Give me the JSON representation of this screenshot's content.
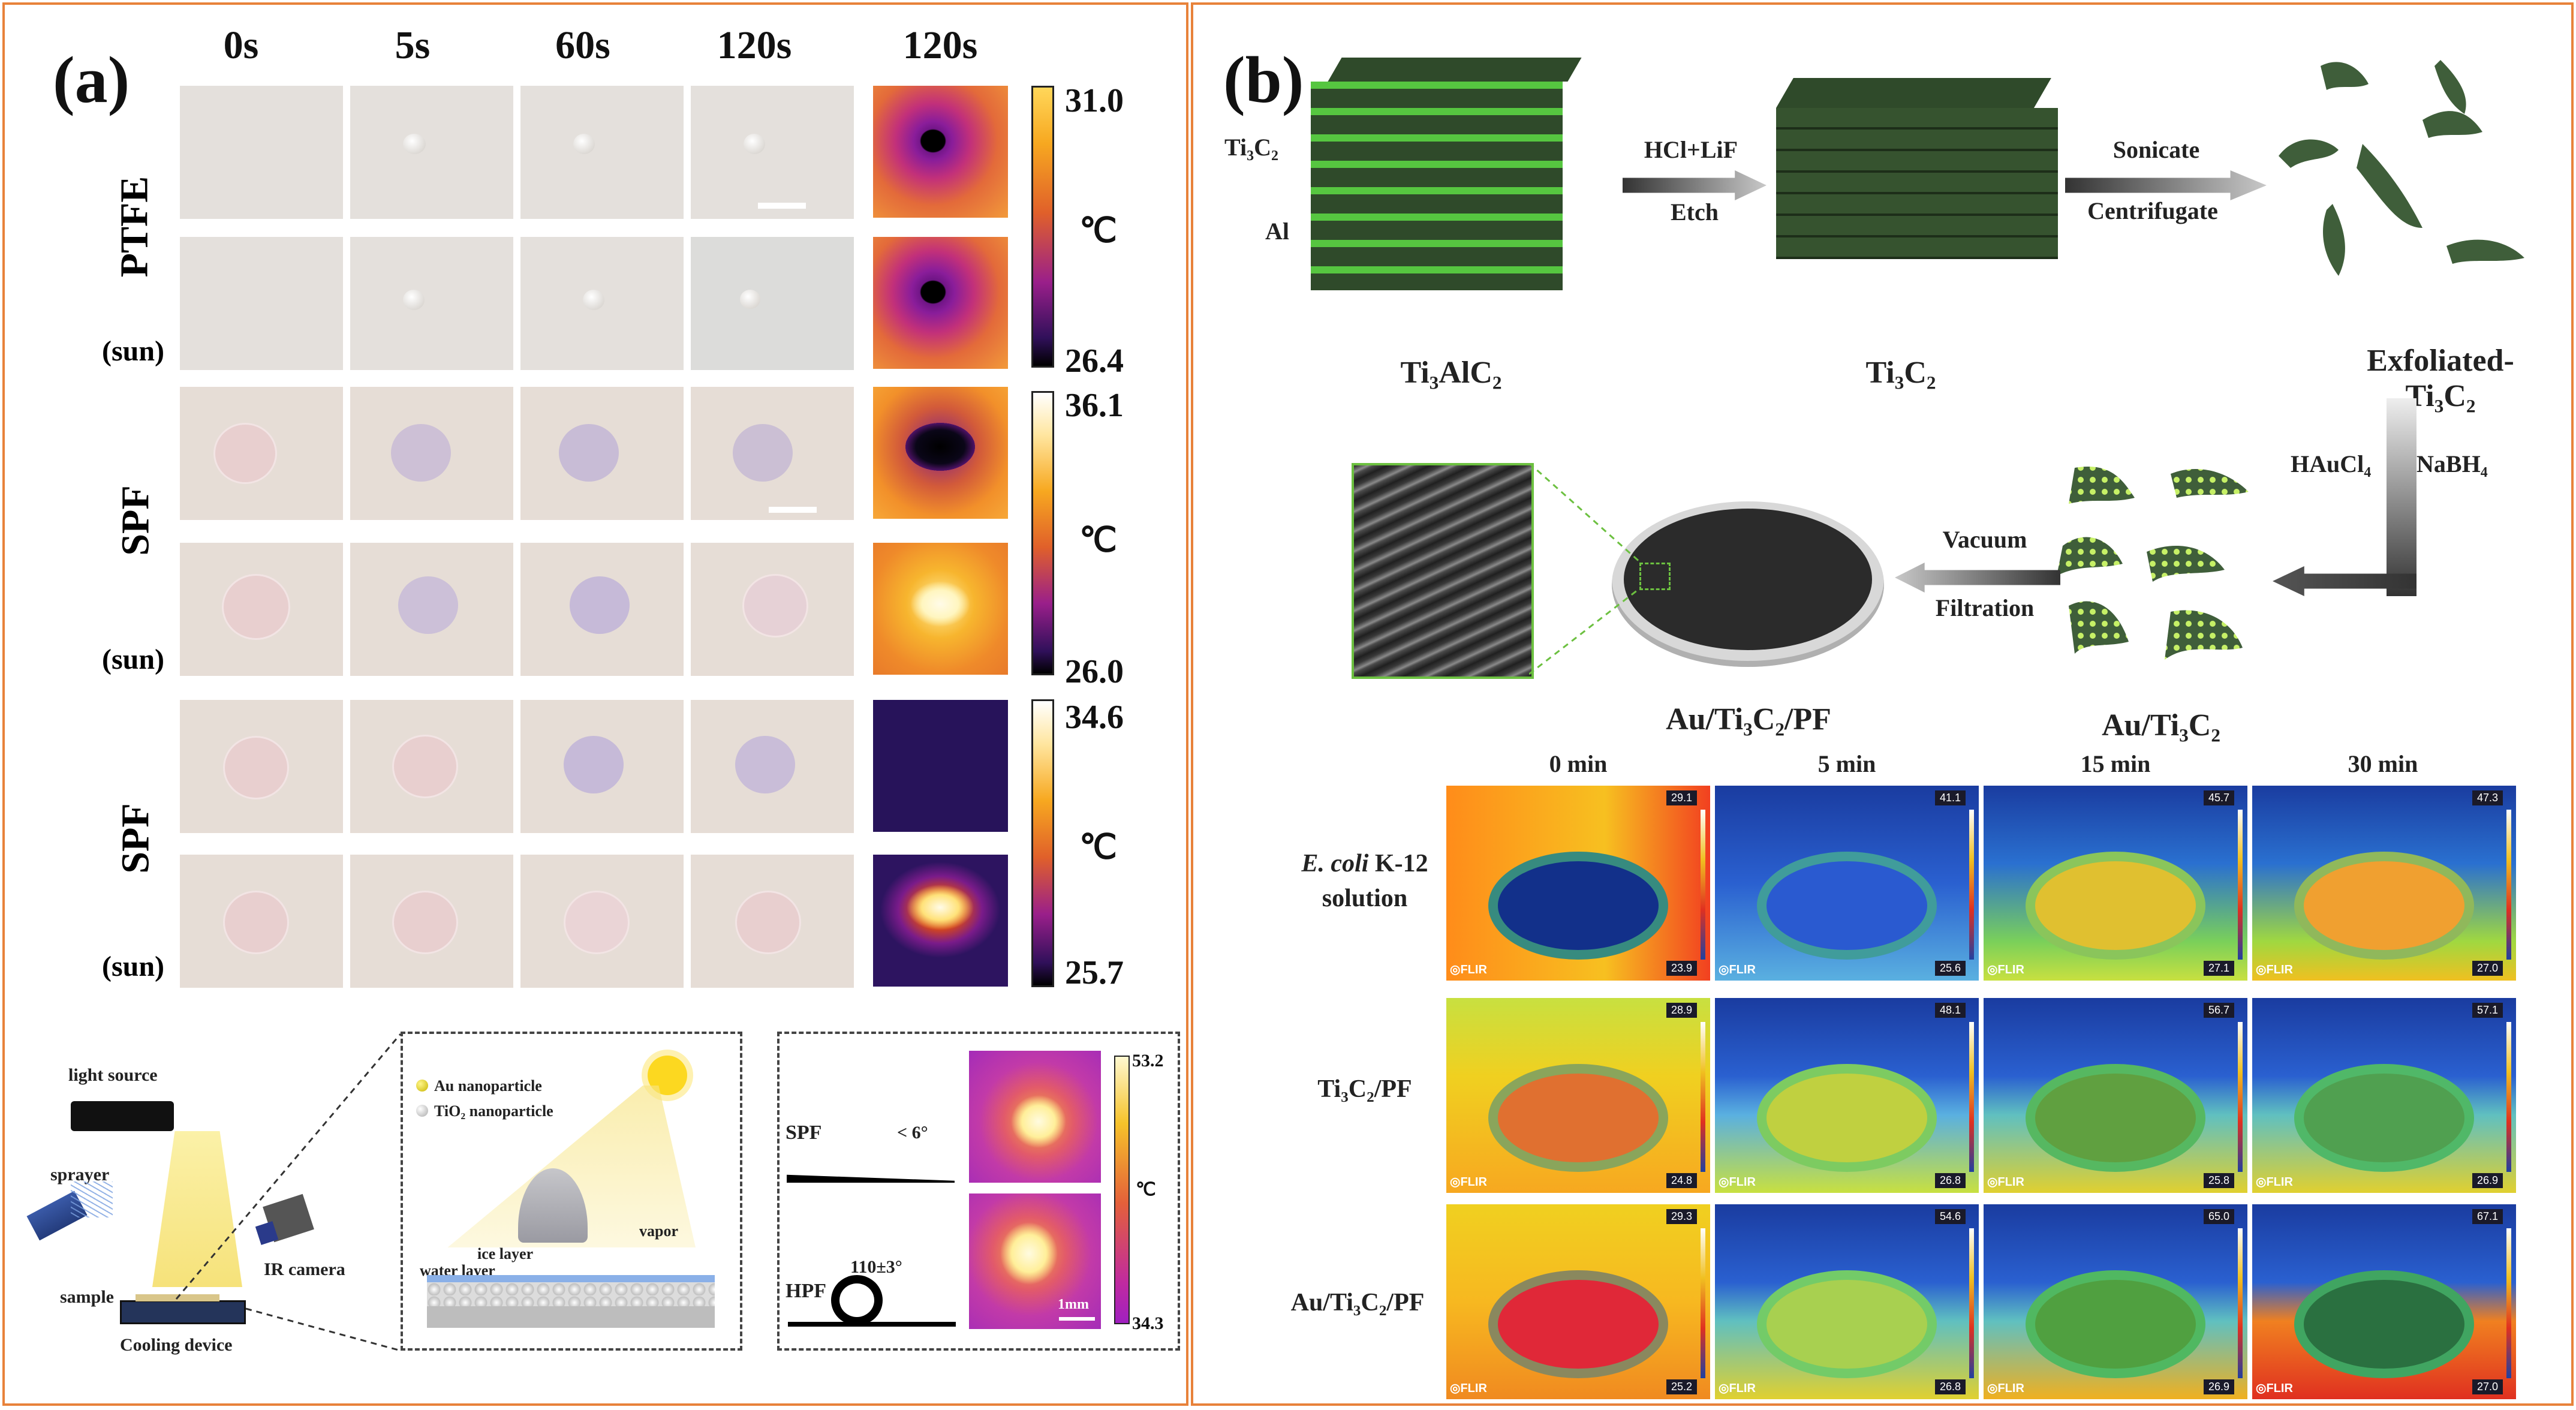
{
  "panel_a": {
    "label": "(a)",
    "times": [
      "0s",
      "5s",
      "60s",
      "120s",
      "120s"
    ],
    "rows": [
      {
        "name": "PTFE",
        "sun": "(sun)"
      },
      {
        "name": "SPF",
        "sun": "(sun)"
      },
      {
        "name": "SPF",
        "sun": "(sun)"
      }
    ],
    "colorbars": [
      {
        "max": "31.0",
        "unit": "℃",
        "min": "26.4"
      },
      {
        "max": "36.1",
        "unit": "℃",
        "min": "26.0"
      },
      {
        "max": "34.6",
        "unit": "℃",
        "min": "25.7"
      }
    ],
    "setup": {
      "light_source": "light source",
      "sprayer": "sprayer",
      "ir_camera": "IR camera",
      "sample": "sample",
      "cooling_device": "Cooling device"
    },
    "zoom": {
      "au_legend": "Au nanoparticle",
      "tio2_legend": "TiO₂ nanoparticle",
      "ice_layer": "ice layer",
      "water_layer": "water layer",
      "vapor": "vapor"
    },
    "contact": {
      "spf": "SPF",
      "spf_angle": "< 6°",
      "hpf": "HPF",
      "hpf_angle": "110±3°",
      "scale_bar": "1mm",
      "cbar_max": "53.2",
      "cbar_unit": "℃",
      "cbar_min": "34.3"
    }
  },
  "panel_b": {
    "label": "(b)",
    "ti3c2_layer": "Ti₃C₂",
    "al_layer": "Al",
    "step1_top": "HCl+LiF",
    "step1_bottom": "Etch",
    "step2_top": "Sonicate",
    "step2_bottom": "Centrifugate",
    "mat1": "Ti₃AlC₂",
    "mat2": "Ti₃C₂",
    "mat3": "Exfoliated-Ti₃C₂",
    "step3_left": "HAuCl₄",
    "step3_right": "NaBH₄",
    "step4_top": "Vacuum",
    "step4_bottom": "Filtration",
    "mat4": "Au/Ti₃C₂",
    "mat5": "Au/Ti₃C₂/PF",
    "times": [
      "0 min",
      "5 min",
      "15 min",
      "30 min"
    ],
    "rows": [
      {
        "name_italic": "E. coli",
        "name_rest": " K-12",
        "name2": "solution",
        "temps": [
          [
            "29.1",
            "23.9"
          ],
          [
            "41.1",
            "25.6"
          ],
          [
            "45.7",
            "27.1"
          ],
          [
            "47.3",
            "27.0"
          ]
        ]
      },
      {
        "name_italic": "",
        "name_rest": "Ti₃C₂/PF",
        "name2": "",
        "temps": [
          [
            "28.9",
            "24.8"
          ],
          [
            "48.1",
            "26.8"
          ],
          [
            "56.7",
            "25.8"
          ],
          [
            "57.1",
            "26.9"
          ]
        ]
      },
      {
        "name_italic": "",
        "name_rest": "Au/Ti₃C₂/PF",
        "name2": "",
        "temps": [
          [
            "29.3",
            "25.2"
          ],
          [
            "54.6",
            "26.8"
          ],
          [
            "65.0",
            "26.9"
          ],
          [
            "67.1",
            "27.0"
          ]
        ]
      }
    ],
    "flir": "◎FLIR"
  },
  "colors": {
    "border": "#e8823a",
    "green": "#3f5e3a",
    "lime": "#6cdc4a"
  }
}
